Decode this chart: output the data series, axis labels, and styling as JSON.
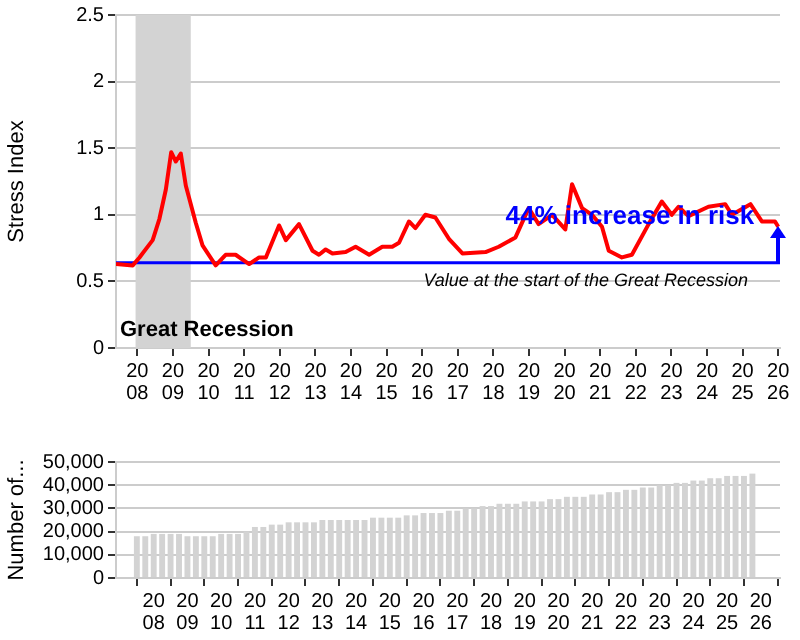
{
  "chart_data": [
    {
      "type": "line",
      "ylabel": "Stress Index",
      "series": [
        {
          "color": "#ff0000",
          "x": [
            2007.4,
            2007.87,
            2008.06,
            2008.43,
            2008.62,
            2008.8,
            2008.95,
            2009.08,
            2009.22,
            2009.36,
            2009.64,
            2009.83,
            2010.2,
            2010.48,
            2010.76,
            2011.14,
            2011.42,
            2011.61,
            2011.98,
            2012.17,
            2012.54,
            2012.92,
            2013.1,
            2013.29,
            2013.48,
            2013.85,
            2014.13,
            2014.51,
            2014.88,
            2015.16,
            2015.35,
            2015.63,
            2015.81,
            2016.09,
            2016.37,
            2016.75,
            2017.13,
            2017.78,
            2018.15,
            2018.62,
            2018.99,
            2019.27,
            2019.65,
            2020.02,
            2020.21,
            2020.49,
            2020.77,
            2021.05,
            2021.24,
            2021.61,
            2021.89,
            2022.36,
            2022.73,
            2023.01,
            2023.2,
            2023.48,
            2024.04,
            2024.51,
            2024.7,
            2025.22,
            2025.54,
            2025.91,
            2026.0
          ],
          "values": [
            0.63,
            0.62,
            0.68,
            0.81,
            0.97,
            1.19,
            1.47,
            1.4,
            1.46,
            1.22,
            0.94,
            0.77,
            0.62,
            0.7,
            0.7,
            0.63,
            0.68,
            0.68,
            0.92,
            0.81,
            0.93,
            0.73,
            0.7,
            0.74,
            0.71,
            0.72,
            0.76,
            0.7,
            0.76,
            0.76,
            0.79,
            0.95,
            0.9,
            1.0,
            0.98,
            0.82,
            0.71,
            0.72,
            0.76,
            0.83,
            1.05,
            0.93,
            1.0,
            0.89,
            1.23,
            1.05,
            1.0,
            0.91,
            0.73,
            0.68,
            0.7,
            0.93,
            1.1,
            1.0,
            1.06,
            0.99,
            1.06,
            1.08,
            1.0,
            1.08,
            0.95,
            0.95,
            0.91
          ]
        }
      ],
      "xlim": [
        2007.4,
        2026.05
      ],
      "xticks": [
        2008,
        2009,
        2010,
        2011,
        2012,
        2013,
        2014,
        2015,
        2016,
        2017,
        2018,
        2019,
        2020,
        2021,
        2022,
        2023,
        2024,
        2025,
        2026
      ],
      "ylim": [
        0,
        2.5
      ],
      "yticks": [
        0,
        0.5,
        1,
        1.5,
        2,
        2.5
      ],
      "bands": [
        {
          "axis": "x",
          "from": 2007.95,
          "to": 2009.5,
          "label": "Great Recession",
          "color": "#d3d3d3"
        }
      ],
      "ref_lines": [
        {
          "axis": "y",
          "value": 0.64,
          "label": "Value at the start of the Great Recession",
          "color": "#0000ff"
        }
      ],
      "annotations": [
        {
          "text": "44% increase in risk",
          "x": 2026,
          "y": 0.91
        }
      ],
      "grid": "y",
      "legend": false,
      "marker": "none",
      "line_style": "solid"
    },
    {
      "type": "bar",
      "ylabel": "Number of...",
      "series": [
        {
          "color": "#d3d3d3",
          "x": [
            2007.5,
            2007.75,
            2008,
            2008.25,
            2008.5,
            2008.75,
            2009,
            2009.25,
            2009.5,
            2009.75,
            2010,
            2010.25,
            2010.5,
            2010.75,
            2011,
            2011.25,
            2011.5,
            2011.75,
            2012,
            2012.25,
            2012.5,
            2012.75,
            2013,
            2013.25,
            2013.5,
            2013.75,
            2014,
            2014.25,
            2014.5,
            2014.75,
            2015,
            2015.25,
            2015.5,
            2015.75,
            2016,
            2016.25,
            2016.5,
            2016.75,
            2017,
            2017.25,
            2017.5,
            2017.75,
            2018,
            2018.25,
            2018.5,
            2018.75,
            2019,
            2019.25,
            2019.5,
            2019.75,
            2020,
            2020.25,
            2020.5,
            2020.75,
            2021,
            2021.25,
            2021.5,
            2021.75,
            2022,
            2022.25,
            2022.5,
            2022.75,
            2023,
            2023.25,
            2023.5,
            2023.75,
            2024,
            2024.25,
            2024.5,
            2024.75,
            2025,
            2025.25,
            2025.5,
            2025.75
          ],
          "values": [
            18000,
            18000,
            19000,
            19000,
            19000,
            19000,
            18000,
            18000,
            18000,
            18000,
            19000,
            19000,
            19000,
            20000,
            22000,
            22000,
            23000,
            23000,
            24000,
            24000,
            24000,
            24000,
            25000,
            25000,
            25000,
            25000,
            25000,
            25000,
            26000,
            26000,
            26000,
            26000,
            27000,
            27000,
            28000,
            28000,
            28000,
            29000,
            29000,
            30000,
            30000,
            31000,
            31000,
            32000,
            32000,
            32000,
            33000,
            33000,
            33000,
            34000,
            34000,
            35000,
            35000,
            35000,
            36000,
            36000,
            37000,
            37000,
            38000,
            38000,
            39000,
            39000,
            40000,
            40000,
            41000,
            41000,
            42000,
            42000,
            43000,
            43000,
            44000,
            44000,
            44000,
            45000
          ]
        }
      ],
      "xlim": [
        2007.4,
        2026.05
      ],
      "xticks": [
        2008,
        2009,
        2010,
        2011,
        2012,
        2013,
        2014,
        2015,
        2016,
        2017,
        2018,
        2019,
        2020,
        2021,
        2022,
        2023,
        2024,
        2025,
        2026
      ],
      "ylim": [
        0,
        50000
      ],
      "yticks": [
        0,
        {
          "value": 10000,
          "label": "10,000"
        },
        {
          "value": 20000,
          "label": "20,000"
        },
        {
          "value": 30000,
          "label": "30,000"
        },
        {
          "value": 40000,
          "label": "40,000"
        },
        {
          "value": 50000,
          "label": "50,000"
        }
      ],
      "grid": "y",
      "legend": false
    }
  ]
}
